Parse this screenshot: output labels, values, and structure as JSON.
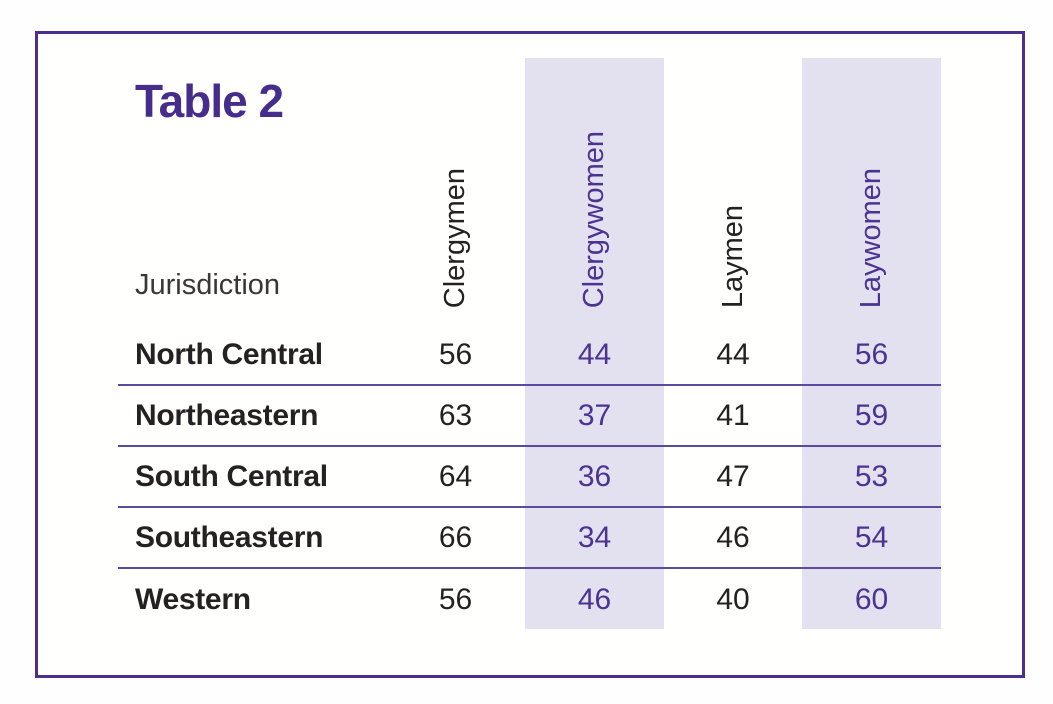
{
  "page": {
    "background": "#fefefe",
    "frame_border_color": "#4b2f8f"
  },
  "colors": {
    "title_purple": "#462d8c",
    "accent_purple": "#4b3391",
    "band_lavender": "#e3e0ef",
    "separator_purple": "#5b4a9d",
    "text_black": "#242122",
    "jurisdiction_gray": "#3a3536"
  },
  "table": {
    "title": "Table 2",
    "columns": [
      "Jurisdiction",
      "Clergymen",
      "Clergywomen",
      "Laymen",
      "Laywomen"
    ],
    "highlighted_columns": [
      "Clergywomen",
      "Laywomen"
    ],
    "rows": [
      {
        "jurisdiction": "North Central",
        "clergymen": "56",
        "clergywomen": "44",
        "laymen": "44",
        "laywomen": "56"
      },
      {
        "jurisdiction": "Northeastern",
        "clergymen": "63",
        "clergywomen": "37",
        "laymen": "41",
        "laywomen": "59"
      },
      {
        "jurisdiction": "South Central",
        "clergymen": "64",
        "clergywomen": "36",
        "laymen": "47",
        "laywomen": "53"
      },
      {
        "jurisdiction": "Southeastern",
        "clergymen": "66",
        "clergywomen": "34",
        "laymen": "46",
        "laywomen": "54"
      },
      {
        "jurisdiction": "Western",
        "clergymen": "56",
        "clergywomen": "46",
        "laymen": "40",
        "laywomen": "60"
      }
    ]
  },
  "chart_data": {
    "type": "table",
    "title": "Table 2",
    "columns": [
      "Jurisdiction",
      "Clergymen",
      "Clergywomen",
      "Laymen",
      "Laywomen"
    ],
    "rows": [
      [
        "North Central",
        56,
        44,
        44,
        56
      ],
      [
        "Northeastern",
        63,
        37,
        41,
        59
      ],
      [
        "South Central",
        64,
        36,
        47,
        53
      ],
      [
        "Southeastern",
        66,
        34,
        46,
        54
      ],
      [
        "Western",
        56,
        46,
        40,
        60
      ]
    ]
  }
}
